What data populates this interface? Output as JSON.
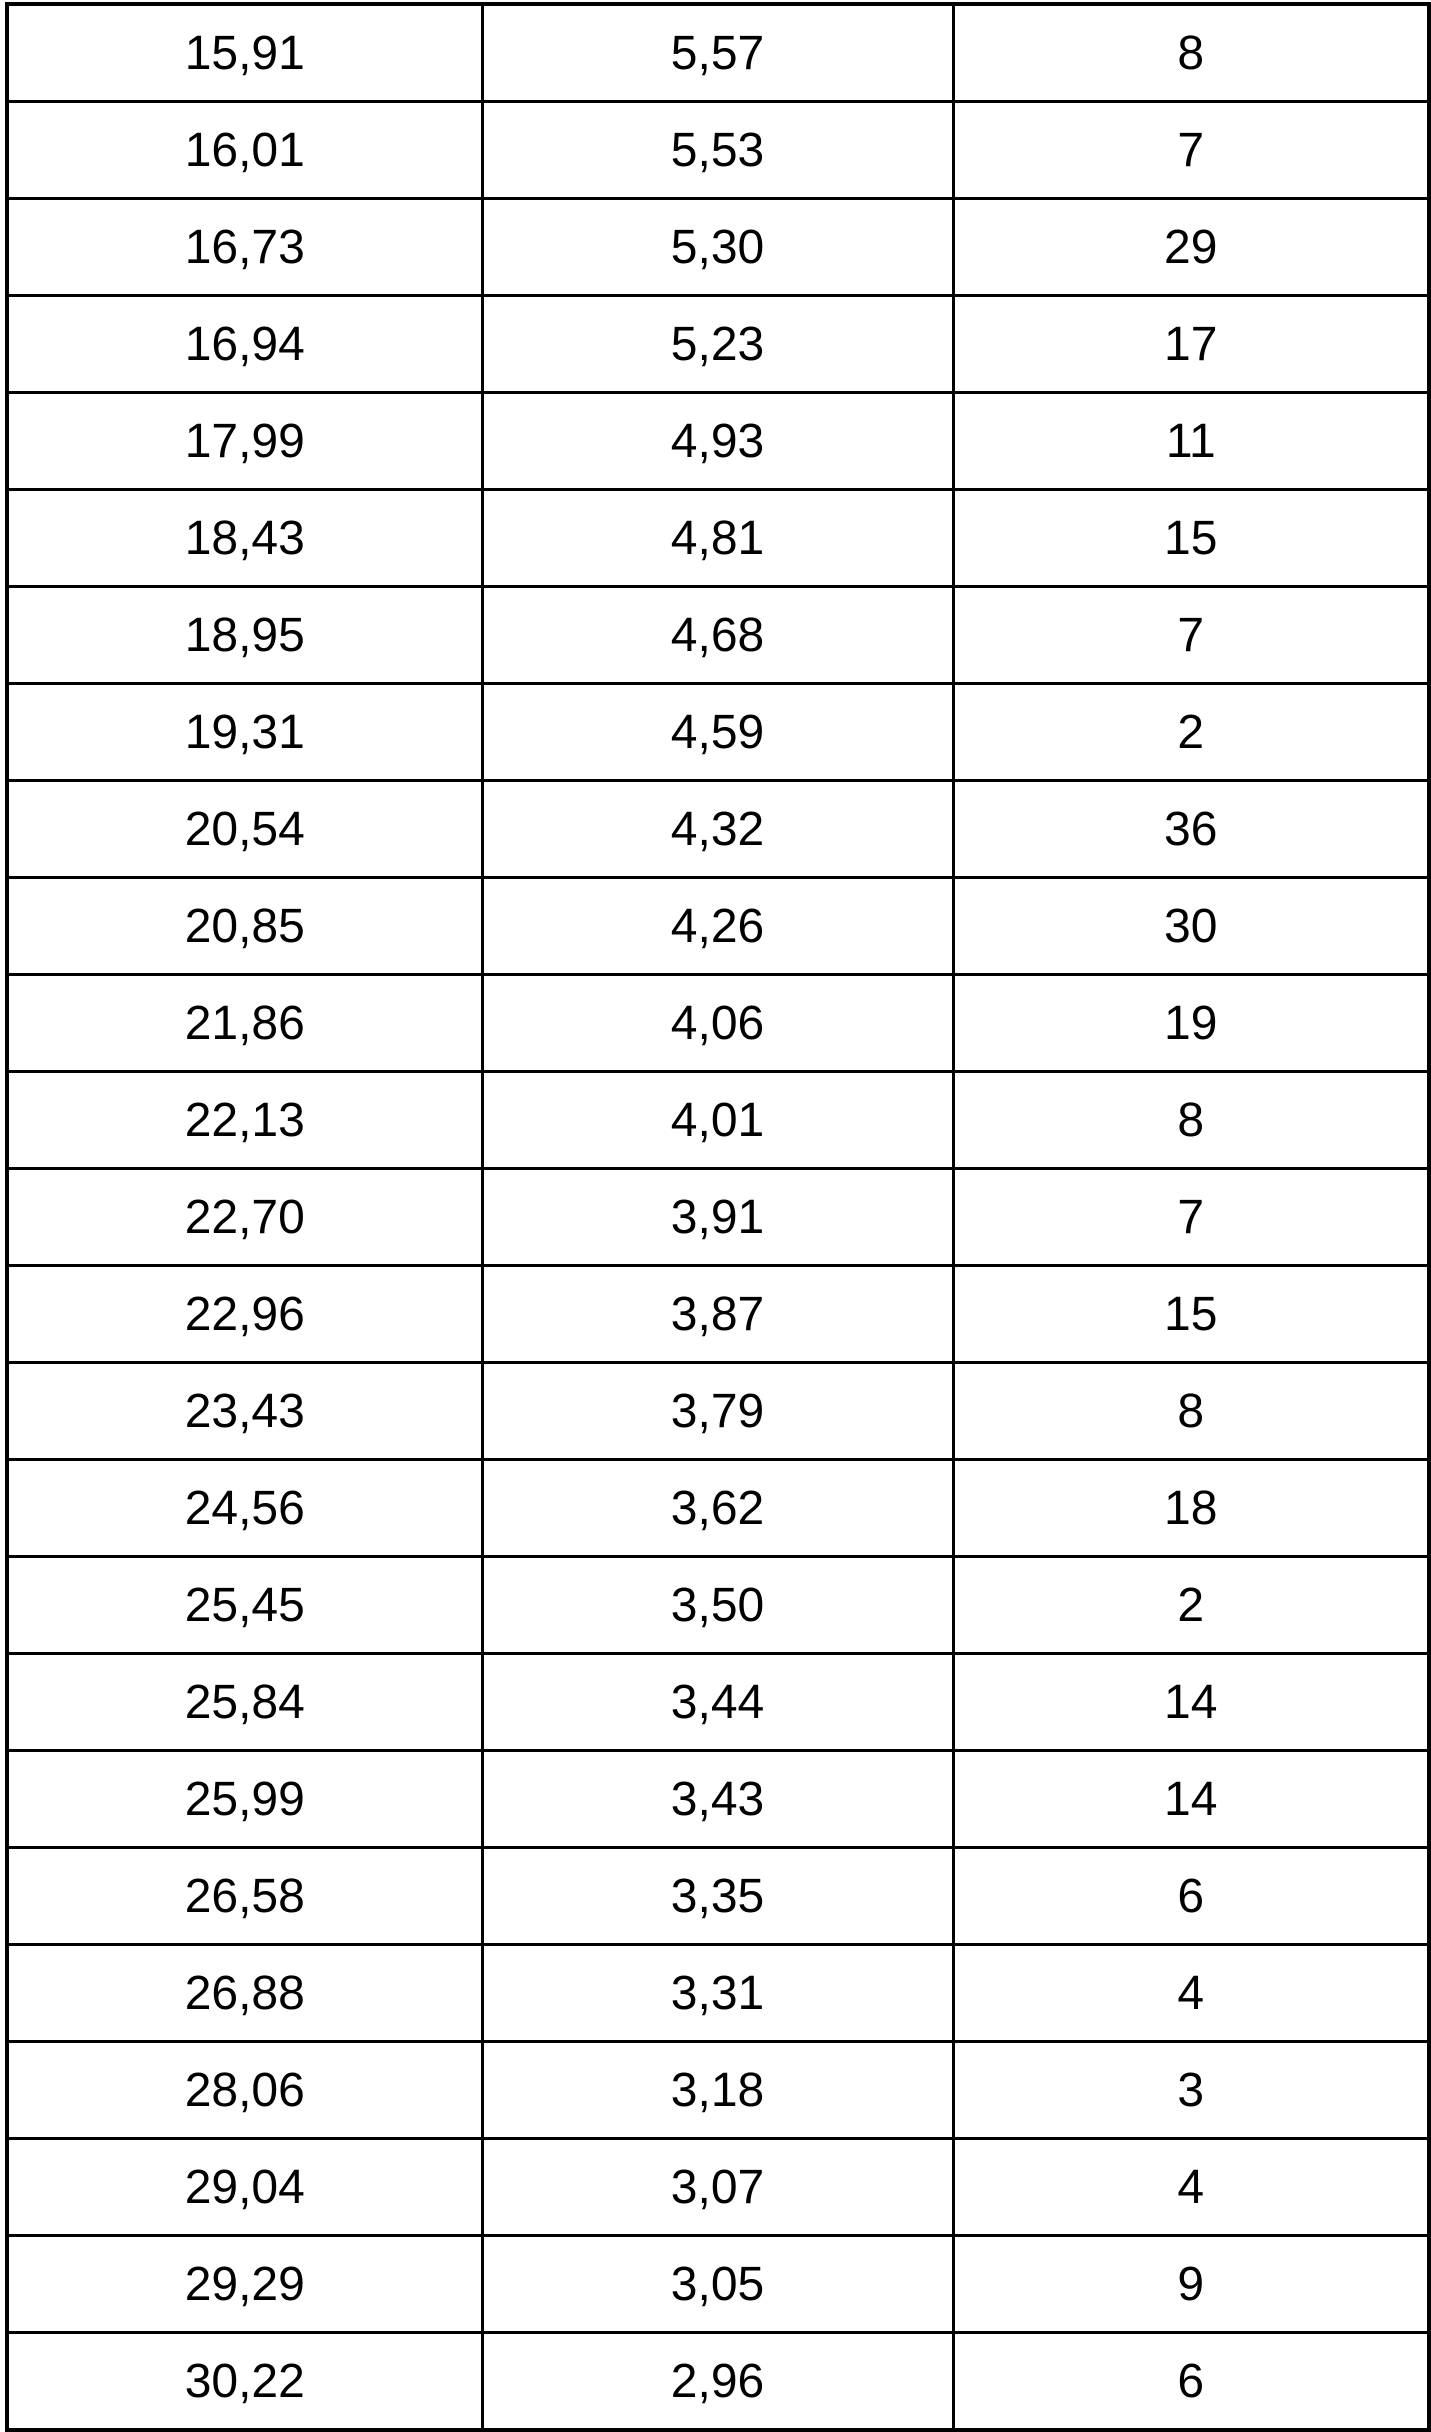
{
  "table": {
    "rows": [
      [
        "15,91",
        "5,57",
        "8"
      ],
      [
        "16,01",
        "5,53",
        "7"
      ],
      [
        "16,73",
        "5,30",
        "29"
      ],
      [
        "16,94",
        "5,23",
        "17"
      ],
      [
        "17,99",
        "4,93",
        "11"
      ],
      [
        "18,43",
        "4,81",
        "15"
      ],
      [
        "18,95",
        "4,68",
        "7"
      ],
      [
        "19,31",
        "4,59",
        "2"
      ],
      [
        "20,54",
        "4,32",
        "36"
      ],
      [
        "20,85",
        "4,26",
        "30"
      ],
      [
        "21,86",
        "4,06",
        "19"
      ],
      [
        "22,13",
        "4,01",
        "8"
      ],
      [
        "22,70",
        "3,91",
        "7"
      ],
      [
        "22,96",
        "3,87",
        "15"
      ],
      [
        "23,43",
        "3,79",
        "8"
      ],
      [
        "24,56",
        "3,62",
        "18"
      ],
      [
        "25,45",
        "3,50",
        "2"
      ],
      [
        "25,84",
        "3,44",
        "14"
      ],
      [
        "25,99",
        "3,43",
        "14"
      ],
      [
        "26,58",
        "3,35",
        "6"
      ],
      [
        "26,88",
        "3,31",
        "4"
      ],
      [
        "28,06",
        "3,18",
        "3"
      ],
      [
        "29,04",
        "3,07",
        "4"
      ],
      [
        "29,29",
        "3,05",
        "9"
      ],
      [
        "30,22",
        "2,96",
        "6"
      ]
    ]
  }
}
